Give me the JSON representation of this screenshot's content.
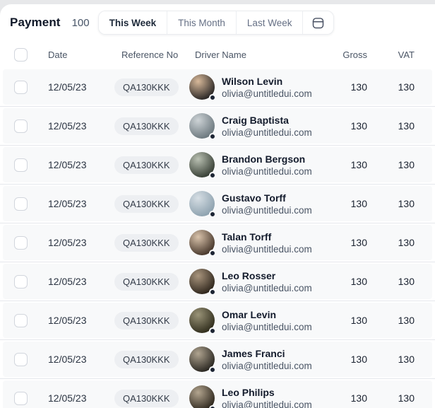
{
  "page": {
    "title": "Payment",
    "count": "100",
    "tabs": [
      {
        "label": "This Week",
        "active": true
      },
      {
        "label": "This Month",
        "active": false
      },
      {
        "label": "Last Week",
        "active": false
      }
    ]
  },
  "colors": {
    "status_dot": "#1c2433",
    "row_background": "#f8f9fa",
    "badge_background": "#edeff2",
    "active_tab_text": "#1d2939",
    "inactive_tab_text": "#667085"
  },
  "table": {
    "columns": [
      "Date",
      "Reference No",
      "Driver Name",
      "Gross",
      "VAT"
    ],
    "rows": [
      {
        "date": "12/05/23",
        "reference": "QA130KKK",
        "driver": {
          "name": "Wilson Levin",
          "email": "olivia@untitledui.com"
        },
        "gross": "130",
        "vat": "130",
        "avatar": {
          "c1": "#d8b99a",
          "c2": "#2e2a28"
        }
      },
      {
        "date": "12/05/23",
        "reference": "QA130KKK",
        "driver": {
          "name": "Craig Baptista",
          "email": "olivia@untitledui.com"
        },
        "gross": "130",
        "vat": "130",
        "avatar": {
          "c1": "#cdd3d6",
          "c2": "#6e7a80"
        }
      },
      {
        "date": "12/05/23",
        "reference": "QA130KKK",
        "driver": {
          "name": "Brandon Bergson",
          "email": "olivia@untitledui.com"
        },
        "gross": "130",
        "vat": "130",
        "avatar": {
          "c1": "#b9c0b2",
          "c2": "#3a4238"
        }
      },
      {
        "date": "12/05/23",
        "reference": "QA130KKK",
        "driver": {
          "name": "Gustavo Torff",
          "email": "olivia@untitledui.com"
        },
        "gross": "130",
        "vat": "130",
        "avatar": {
          "c1": "#d6dee4",
          "c2": "#8fa3b0"
        }
      },
      {
        "date": "12/05/23",
        "reference": "QA130KKK",
        "driver": {
          "name": "Talan Torff",
          "email": "olivia@untitledui.com"
        },
        "gross": "130",
        "vat": "130",
        "avatar": {
          "c1": "#d9c3ab",
          "c2": "#4a3a2e"
        }
      },
      {
        "date": "12/05/23",
        "reference": "QA130KKK",
        "driver": {
          "name": "Leo Rosser",
          "email": "olivia@untitledui.com"
        },
        "gross": "130",
        "vat": "130",
        "avatar": {
          "c1": "#a9957d",
          "c2": "#32291f"
        }
      },
      {
        "date": "12/05/23",
        "reference": "QA130KKK",
        "driver": {
          "name": "Omar Levin",
          "email": "olivia@untitledui.com"
        },
        "gross": "130",
        "vat": "130",
        "avatar": {
          "c1": "#9a9478",
          "c2": "#33301f"
        }
      },
      {
        "date": "12/05/23",
        "reference": "QA130KKK",
        "driver": {
          "name": "James Franci",
          "email": "olivia@untitledui.com"
        },
        "gross": "130",
        "vat": "130",
        "avatar": {
          "c1": "#b0a490",
          "c2": "#2d2a24"
        }
      },
      {
        "date": "12/05/23",
        "reference": "QA130KKK",
        "driver": {
          "name": "Leo Philips",
          "email": "olivia@untitledui.com"
        },
        "gross": "130",
        "vat": "130",
        "avatar": {
          "c1": "#b3a58f",
          "c2": "#30291f"
        }
      }
    ]
  }
}
